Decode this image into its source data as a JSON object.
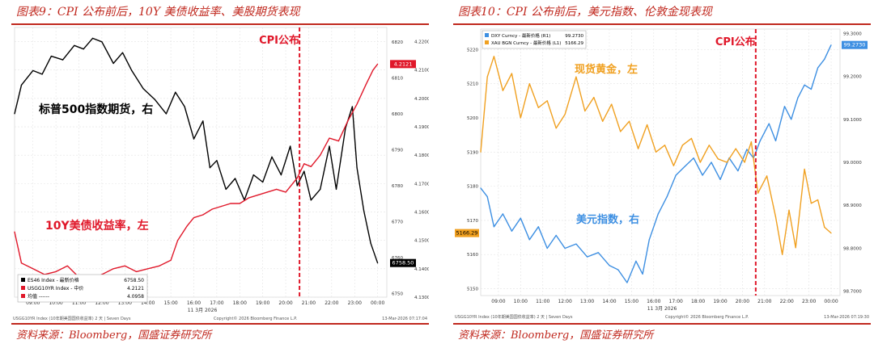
{
  "colors": {
    "accent": "#c0281e",
    "black": "#000000",
    "red": "#e0182a",
    "blue": "#3d8fe2",
    "orange": "#f0a020"
  },
  "charts": [
    {
      "caption": "图表9：CPI 公布前后，10Y 美债收益率、美股期货表现",
      "source": "资料来源：Bloomberg，国盛证券研究所",
      "footer_left": "USGG10YR Index (10年期美国国债收益率) 2 天 | Seven Days",
      "footer_mid": "Copyright© 2026 Bloomberg Finance L.P.",
      "footer_right": "13-Mar-2026 07:17:04",
      "date_label": "11 3月 2026",
      "event_label": "CPI公布",
      "annot_es": "标普500指数期货，右",
      "annot_yield": "10Y美债收益率，左",
      "legend": [
        {
          "name": "ES46 Index - 最新价格",
          "value": "6758.50",
          "color": "#000000"
        },
        {
          "name": "USGG10YR Index - 中价",
          "value": "4.2121",
          "color": "#e0182a"
        },
        {
          "name": "均值 ------",
          "value": "4.0958",
          "color": "#e0182a"
        }
      ],
      "last_value_right": "6758.50",
      "last_value_left": "4.2121",
      "chart_data": {
        "type": "line",
        "x_ticks": [
          "09:00",
          "10:00",
          "11:00",
          "12:00",
          "13:00",
          "14:00",
          "15:00",
          "16:00",
          "17:00",
          "18:00",
          "19:00",
          "20:00",
          "21:00",
          "22:00",
          "23:00",
          "00:00"
        ],
        "x_range": [
          8.2,
          24.4
        ],
        "event_time": 20.6,
        "left_axis": {
          "range": [
            4.13,
            4.225
          ],
          "ticks": [
            "4.1300",
            "4.1400",
            "4.1500",
            "4.1600",
            "4.1700",
            "4.1800",
            "4.1900",
            "4.2000",
            "4.2100",
            "4.2200"
          ]
        },
        "right_axis": {
          "range": [
            6749,
            6824
          ],
          "ticks": [
            "6750",
            "6760",
            "6770",
            "6780",
            "6790",
            "6800",
            "6810",
            "6820"
          ]
        },
        "series": [
          {
            "name": "ES46 Index - 最新价格",
            "axis": "right",
            "color": "#000000",
            "points": [
              [
                8.2,
                6800
              ],
              [
                8.5,
                6808
              ],
              [
                9.0,
                6812
              ],
              [
                9.4,
                6811
              ],
              [
                9.8,
                6816
              ],
              [
                10.3,
                6815
              ],
              [
                10.8,
                6819
              ],
              [
                11.2,
                6818
              ],
              [
                11.6,
                6821
              ],
              [
                12.0,
                6820
              ],
              [
                12.5,
                6814
              ],
              [
                12.9,
                6817
              ],
              [
                13.3,
                6812
              ],
              [
                13.8,
                6807
              ],
              [
                14.3,
                6804
              ],
              [
                14.8,
                6800
              ],
              [
                15.2,
                6806
              ],
              [
                15.6,
                6802
              ],
              [
                16.0,
                6793
              ],
              [
                16.4,
                6798
              ],
              [
                16.7,
                6785
              ],
              [
                17.0,
                6787
              ],
              [
                17.4,
                6779
              ],
              [
                17.8,
                6782
              ],
              [
                18.2,
                6776
              ],
              [
                18.6,
                6783
              ],
              [
                19.0,
                6781
              ],
              [
                19.4,
                6788
              ],
              [
                19.8,
                6783
              ],
              [
                20.2,
                6791
              ],
              [
                20.5,
                6780
              ],
              [
                20.8,
                6784
              ],
              [
                21.1,
                6776
              ],
              [
                21.5,
                6779
              ],
              [
                21.9,
                6791
              ],
              [
                22.2,
                6779
              ],
              [
                22.6,
                6796
              ],
              [
                22.9,
                6802
              ],
              [
                23.1,
                6785
              ],
              [
                23.4,
                6773
              ],
              [
                23.7,
                6764
              ],
              [
                24.0,
                6758.5
              ]
            ]
          },
          {
            "name": "USGG10YR Index - 中价",
            "axis": "left",
            "color": "#e0182a",
            "points": [
              [
                8.2,
                4.153
              ],
              [
                8.5,
                4.142
              ],
              [
                9.0,
                4.14
              ],
              [
                9.5,
                4.138
              ],
              [
                10.0,
                4.139
              ],
              [
                10.5,
                4.141
              ],
              [
                11.0,
                4.137
              ],
              [
                11.5,
                4.136
              ],
              [
                12.0,
                4.138
              ],
              [
                12.5,
                4.14
              ],
              [
                13.0,
                4.141
              ],
              [
                13.5,
                4.139
              ],
              [
                14.0,
                4.14
              ],
              [
                14.5,
                4.141
              ],
              [
                15.0,
                4.143
              ],
              [
                15.3,
                4.15
              ],
              [
                15.7,
                4.155
              ],
              [
                16.0,
                4.158
              ],
              [
                16.4,
                4.159
              ],
              [
                16.8,
                4.161
              ],
              [
                17.2,
                4.162
              ],
              [
                17.6,
                4.163
              ],
              [
                18.0,
                4.163
              ],
              [
                18.4,
                4.165
              ],
              [
                18.8,
                4.166
              ],
              [
                19.2,
                4.167
              ],
              [
                19.6,
                4.168
              ],
              [
                20.0,
                4.167
              ],
              [
                20.3,
                4.17
              ],
              [
                20.5,
                4.172
              ],
              [
                20.8,
                4.177
              ],
              [
                21.1,
                4.176
              ],
              [
                21.5,
                4.18
              ],
              [
                21.9,
                4.186
              ],
              [
                22.3,
                4.185
              ],
              [
                22.7,
                4.192
              ],
              [
                23.1,
                4.198
              ],
              [
                23.5,
                4.205
              ],
              [
                23.8,
                4.21
              ],
              [
                24.0,
                4.2121
              ]
            ]
          }
        ]
      }
    },
    {
      "caption": "图表10：CPI 公布前后，美元指数、伦敦金现表现",
      "source": "资料来源：Bloomberg，国盛证券研究所",
      "footer_left": "USGG10YR Index (10年期美国国债收益率) 2 天 | Seven Days",
      "footer_mid": "Copyright© 2026 Bloomberg Finance L.P.",
      "footer_right": "13-Mar-2026 07:19:30",
      "date_label": "11 3月 2026",
      "event_label": "CPI公布",
      "annot_gold": "现货黄金，左",
      "annot_dxy": "美元指数，右",
      "legend": [
        {
          "name": "DXY Curncy - 最新价格 (R1)",
          "value": "99.2730",
          "color": "#3d8fe2"
        },
        {
          "name": "XAU BGN Curncy - 最新价格 (L1)",
          "value": "5166.29",
          "color": "#f0a020"
        }
      ],
      "last_value_right": "99.2730",
      "last_value_left": "5166.29",
      "chart_data": {
        "type": "line",
        "x_ticks": [
          "09:00",
          "10:00",
          "11:00",
          "12:00",
          "13:00",
          "14:00",
          "15:00",
          "16:00",
          "17:00",
          "18:00",
          "19:00",
          "20:00",
          "21:00",
          "22:00",
          "23:00",
          "00:00"
        ],
        "x_range": [
          8.2,
          24.4
        ],
        "event_time": 20.6,
        "left_axis": {
          "range": [
            5148,
            5226
          ],
          "ticks": [
            "5150",
            "5160",
            "5170",
            "5180",
            "5190",
            "5200",
            "5210",
            "5220"
          ]
        },
        "right_axis": {
          "range": [
            98.69,
            99.31
          ],
          "ticks": [
            "98.7000",
            "98.8000",
            "98.9000",
            "99.0000",
            "99.1000",
            "99.2000",
            "99.3000"
          ]
        },
        "series": [
          {
            "name": "DXY Curncy - 最新价格 (R1)",
            "axis": "right",
            "color": "#3d8fe2",
            "points": [
              [
                8.2,
                98.94
              ],
              [
                8.5,
                98.92
              ],
              [
                8.8,
                98.85
              ],
              [
                9.2,
                98.88
              ],
              [
                9.6,
                98.84
              ],
              [
                10.0,
                98.87
              ],
              [
                10.4,
                98.82
              ],
              [
                10.8,
                98.85
              ],
              [
                11.2,
                98.8
              ],
              [
                11.6,
                98.83
              ],
              [
                12.0,
                98.8
              ],
              [
                12.5,
                98.81
              ],
              [
                13.0,
                98.78
              ],
              [
                13.5,
                98.79
              ],
              [
                14.0,
                98.76
              ],
              [
                14.4,
                98.75
              ],
              [
                14.8,
                98.72
              ],
              [
                15.2,
                98.77
              ],
              [
                15.5,
                98.74
              ],
              [
                15.8,
                98.82
              ],
              [
                16.2,
                98.88
              ],
              [
                16.6,
                98.92
              ],
              [
                17.0,
                98.97
              ],
              [
                17.4,
                98.99
              ],
              [
                17.8,
                99.01
              ],
              [
                18.2,
                98.97
              ],
              [
                18.6,
                99.0
              ],
              [
                19.0,
                98.96
              ],
              [
                19.4,
                99.01
              ],
              [
                19.8,
                98.98
              ],
              [
                20.2,
                99.03
              ],
              [
                20.5,
                99.01
              ],
              [
                20.8,
                99.05
              ],
              [
                21.2,
                99.09
              ],
              [
                21.5,
                99.05
              ],
              [
                21.9,
                99.13
              ],
              [
                22.2,
                99.1
              ],
              [
                22.5,
                99.15
              ],
              [
                22.8,
                99.18
              ],
              [
                23.1,
                99.17
              ],
              [
                23.4,
                99.22
              ],
              [
                23.7,
                99.24
              ],
              [
                24.0,
                99.273
              ]
            ]
          },
          {
            "name": "XAU BGN Curncy - 最新价格 (L1)",
            "axis": "left",
            "color": "#f0a020",
            "points": [
              [
                8.2,
                5190
              ],
              [
                8.5,
                5212
              ],
              [
                8.8,
                5218
              ],
              [
                9.2,
                5208
              ],
              [
                9.6,
                5213
              ],
              [
                10.0,
                5200
              ],
              [
                10.4,
                5210
              ],
              [
                10.8,
                5203
              ],
              [
                11.2,
                5205
              ],
              [
                11.6,
                5197
              ],
              [
                12.0,
                5201
              ],
              [
                12.5,
                5212
              ],
              [
                12.9,
                5202
              ],
              [
                13.3,
                5206
              ],
              [
                13.7,
                5199
              ],
              [
                14.1,
                5204
              ],
              [
                14.5,
                5196
              ],
              [
                14.9,
                5199
              ],
              [
                15.3,
                5191
              ],
              [
                15.7,
                5198
              ],
              [
                16.1,
                5190
              ],
              [
                16.5,
                5192
              ],
              [
                16.9,
                5186
              ],
              [
                17.3,
                5192
              ],
              [
                17.7,
                5194
              ],
              [
                18.1,
                5187
              ],
              [
                18.5,
                5192
              ],
              [
                18.9,
                5188
              ],
              [
                19.3,
                5187
              ],
              [
                19.7,
                5191
              ],
              [
                20.1,
                5187
              ],
              [
                20.4,
                5193
              ],
              [
                20.7,
                5178
              ],
              [
                21.1,
                5183
              ],
              [
                21.5,
                5171
              ],
              [
                21.8,
                5160
              ],
              [
                22.1,
                5173
              ],
              [
                22.4,
                5162
              ],
              [
                22.8,
                5185
              ],
              [
                23.1,
                5175
              ],
              [
                23.4,
                5176
              ],
              [
                23.7,
                5168
              ],
              [
                24.0,
                5166.29
              ]
            ]
          }
        ]
      }
    }
  ]
}
